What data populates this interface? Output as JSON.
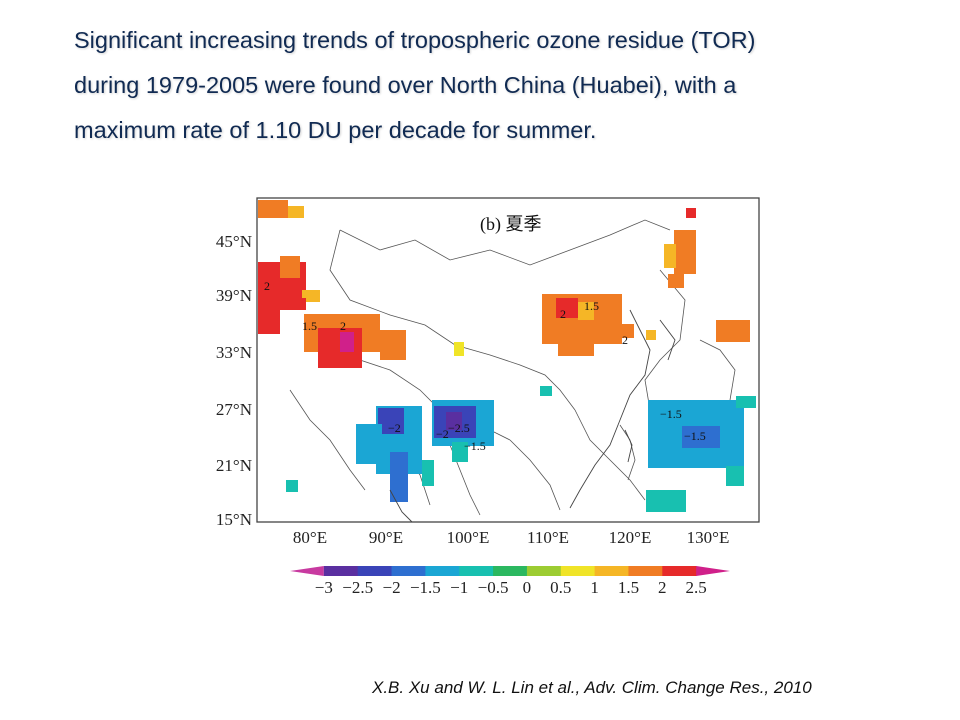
{
  "headline": {
    "line1": "Significant increasing trends of tropospheric ozone residue (TOR)",
    "line2": "during 1979-2005 were found over North China (Huabei), with a",
    "line3": "maximum rate of 1.10 DU per decade for summer."
  },
  "map": {
    "panel_label": "(b) 夏季",
    "y_axis_labels": [
      "45°N",
      "39°N",
      "33°N",
      "27°N",
      "21°N",
      "15°N"
    ],
    "x_axis_labels": [
      "80°E",
      "90°E",
      "100°E",
      "110°E",
      "120°E",
      "130°E"
    ],
    "contour_labels": [
      "2",
      "1.5",
      "2",
      "2",
      "1.5",
      "2",
      "−2",
      "−2.5",
      "−2",
      "−1.5",
      "−1.5",
      "−1.5"
    ],
    "colorbar": {
      "labels": [
        "−3",
        "−2.5",
        "−2",
        "−1.5",
        "−1",
        "−0.5",
        "0",
        "0.5",
        "1",
        "1.5",
        "2",
        "2.5"
      ],
      "colors": [
        "#c83aa0",
        "#5a2fa0",
        "#3a44b8",
        "#2e6fd0",
        "#1ba6d4",
        "#18c0b0",
        "#2bb860",
        "#9ccc32",
        "#f0e428",
        "#f5b626",
        "#f07c24",
        "#e62a2a",
        "#d0208a"
      ]
    }
  },
  "citation": "X.B. Xu and W. L. Lin et al., Adv. Clim. Change Res., 2010"
}
